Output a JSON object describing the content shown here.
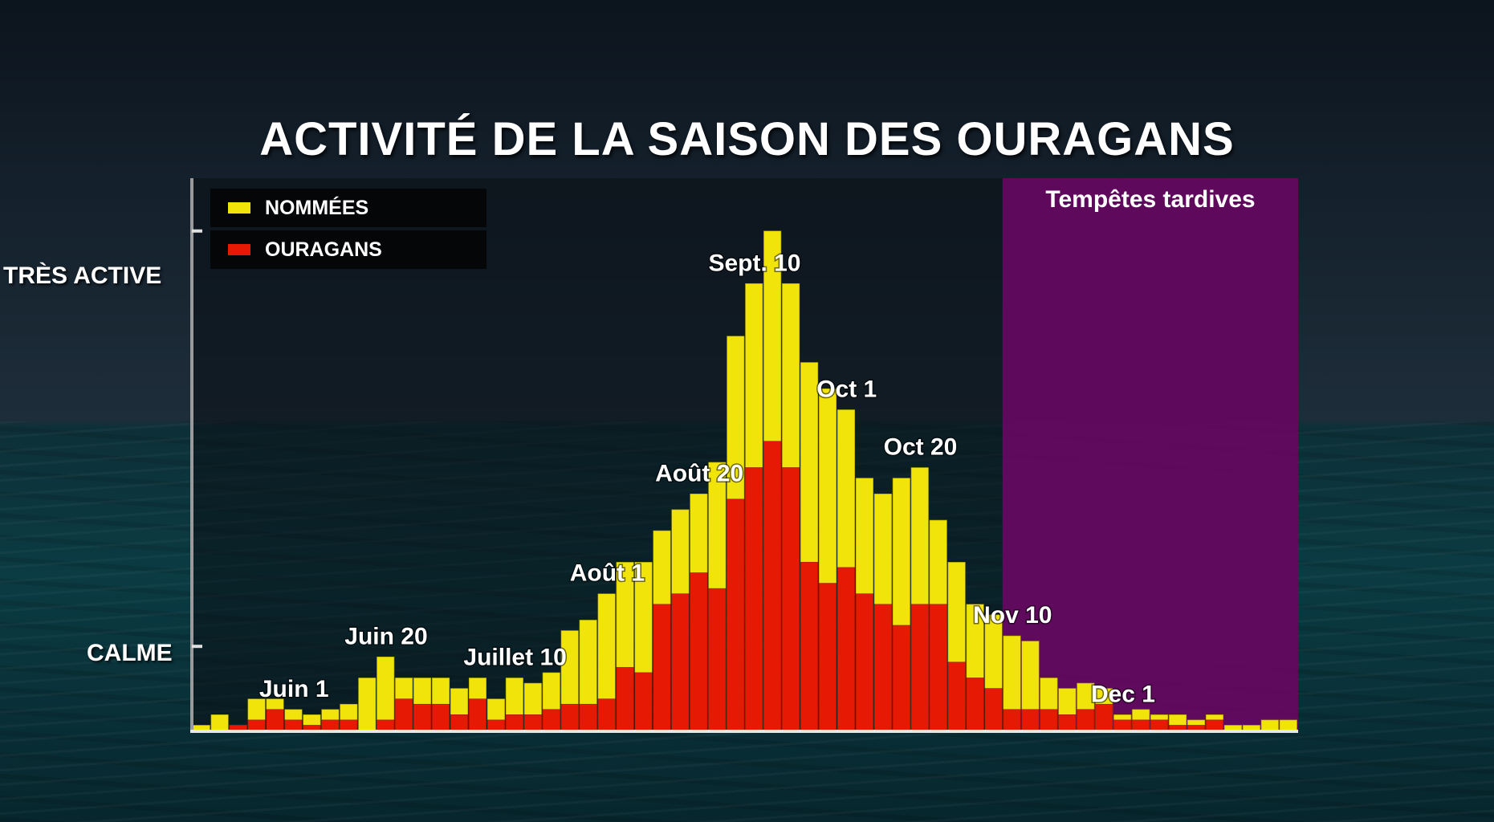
{
  "title": "ACTIVITÉ DE LA SAISON DES OURAGANS",
  "y_axis_labels": {
    "high": "TRÈS ACTIVE",
    "low": "CALME"
  },
  "legend": [
    {
      "label": "NOMMÉES",
      "color": "#f1e40a"
    },
    {
      "label": "OURAGANS",
      "color": "#e61905"
    }
  ],
  "late_season": {
    "label": "Tempêtes tardives",
    "color": "#62095f"
  },
  "colors": {
    "named": "#f1e40a",
    "hurricanes": "#e61905",
    "axis": "#b8b8b8"
  },
  "chart_data": {
    "type": "bar",
    "title": "ACTIVITÉ DE LA SAISON DES OURAGANS",
    "y_scale": "qualitative, from CALME to TRÈS ACTIVE",
    "ylim": [
      0,
      100
    ],
    "y_ticks": [
      {
        "label": "CALME",
        "value": 16
      },
      {
        "label": "TRÈS ACTIVE",
        "value": 95
      }
    ],
    "grid": false,
    "legend_position": "top-left",
    "date_labels": [
      {
        "label": "Juin 1",
        "bar_index": 5
      },
      {
        "label": "Juin 20",
        "bar_index": 10
      },
      {
        "label": "Juillet 10",
        "bar_index": 17
      },
      {
        "label": "Août 1",
        "bar_index": 22
      },
      {
        "label": "Août 20",
        "bar_index": 27
      },
      {
        "label": "Sept. 10",
        "bar_index": 30
      },
      {
        "label": "Oct 1",
        "bar_index": 35
      },
      {
        "label": "Oct 20",
        "bar_index": 39
      },
      {
        "label": "Nov 10",
        "bar_index": 44
      },
      {
        "label": "Dec 1",
        "bar_index": 50
      }
    ],
    "shaded_region": {
      "label": "Tempêtes tardives",
      "from_bar_index": 44,
      "to_bar_index": 59
    },
    "series": [
      {
        "name": "NOMMÉES",
        "values": [
          1,
          3,
          1,
          6,
          6,
          4,
          3,
          4,
          5,
          10,
          14,
          10,
          10,
          10,
          8,
          10,
          6,
          10,
          9,
          11,
          19,
          21,
          26,
          32,
          32,
          38,
          42,
          45,
          51,
          75,
          85,
          95,
          85,
          70,
          65,
          61,
          48,
          45,
          48,
          50,
          40,
          32,
          24,
          22,
          18,
          17,
          10,
          8,
          9,
          8,
          3,
          4,
          3,
          3,
          2,
          3,
          1,
          1,
          2,
          2
        ],
        "color": "#f1e40a"
      },
      {
        "name": "OURAGANS",
        "values": [
          0,
          0,
          1,
          2,
          4,
          2,
          1,
          2,
          2,
          0,
          2,
          6,
          5,
          5,
          3,
          6,
          2,
          3,
          3,
          4,
          5,
          5,
          6,
          12,
          11,
          24,
          26,
          30,
          27,
          44,
          50,
          55,
          50,
          32,
          28,
          31,
          26,
          24,
          20,
          24,
          24,
          13,
          10,
          8,
          4,
          4,
          4,
          3,
          4,
          5,
          2,
          2,
          2,
          1,
          1,
          2,
          0,
          0,
          0,
          0
        ],
        "color": "#e61905"
      }
    ]
  }
}
